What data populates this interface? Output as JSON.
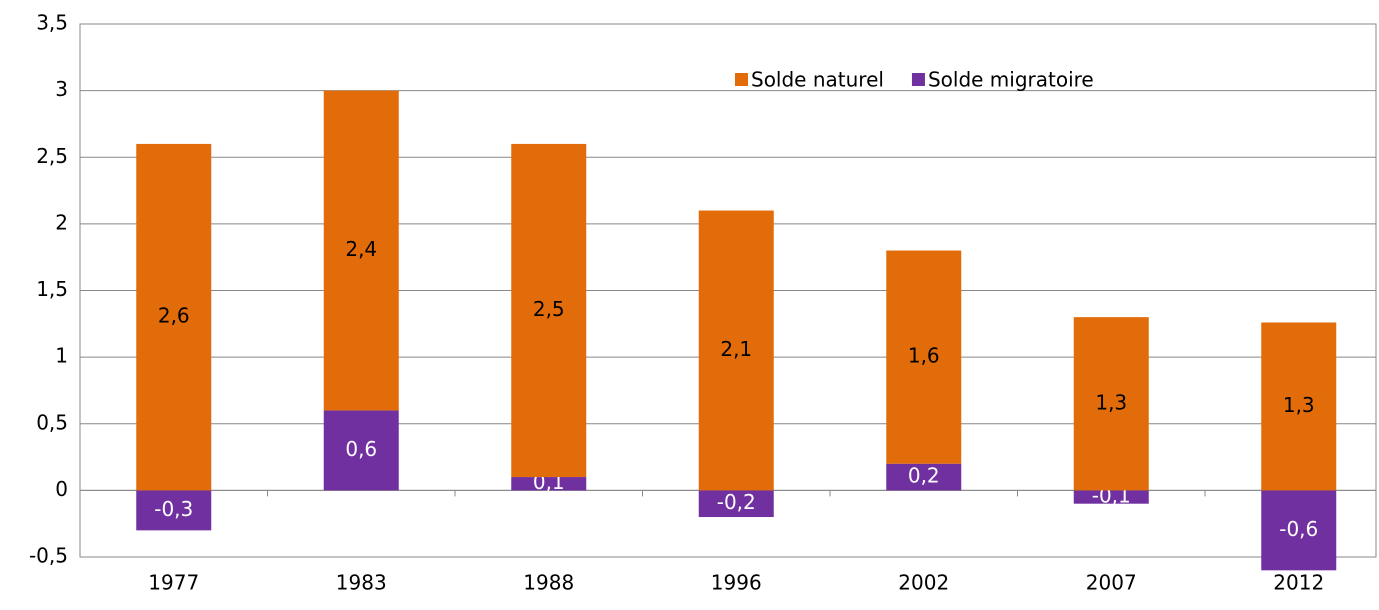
{
  "chart_data": {
    "type": "bar",
    "stacked": true,
    "categories": [
      "1977",
      "1983",
      "1988",
      "1996",
      "2002",
      "2007",
      "2012"
    ],
    "series": [
      {
        "name": "Solde naturel",
        "color": "#e36c0a",
        "values": [
          2.6,
          2.4,
          2.5,
          2.1,
          1.6,
          1.3,
          1.26
        ],
        "value_labels": [
          "2,6",
          "2,4",
          "2,5",
          "2,1",
          "1,6",
          "1,3",
          "1,3"
        ]
      },
      {
        "name": "Solde migratoire",
        "color": "#7030a0",
        "values": [
          -0.3,
          0.6,
          0.1,
          -0.2,
          0.2,
          -0.1,
          -0.6
        ],
        "value_labels": [
          "-0,3",
          "0,6",
          "0,1",
          "-0,2",
          "0,2",
          "-0,1",
          "-0,6"
        ]
      }
    ],
    "ylim": [
      -0.5,
      3.5
    ],
    "yticks": [
      {
        "value": -0.5,
        "label": "-0,5"
      },
      0,
      {
        "value": 0.5,
        "label": "0,5"
      },
      1,
      {
        "value": 1.5,
        "label": "1,5"
      },
      2,
      {
        "value": 2.5,
        "label": "2,5"
      },
      3,
      {
        "value": 3.5,
        "label": "3,5"
      }
    ],
    "grid": true,
    "legend": "top"
  }
}
